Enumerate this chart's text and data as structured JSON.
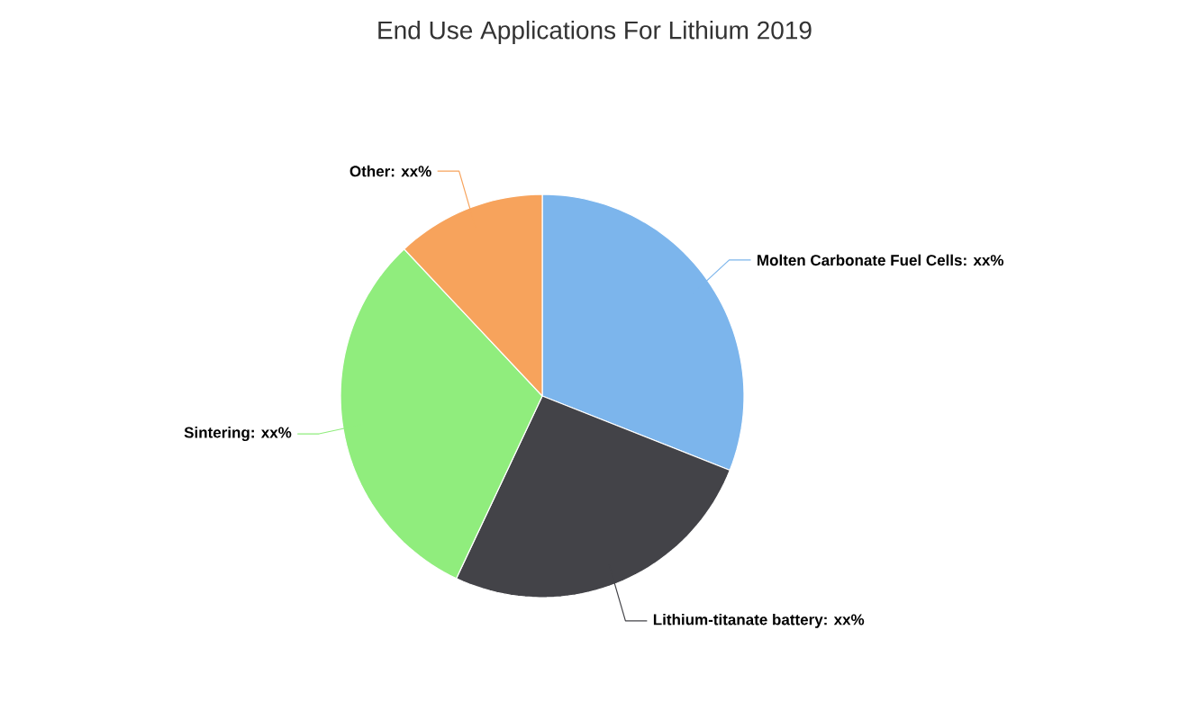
{
  "chart_data": {
    "type": "pie",
    "title": "End Use Applications For Lithium 2019",
    "categories": [
      "Molten Carbonate Fuel Cells: xx%",
      "Lithium-titanate battery: xx%",
      "Sintering: xx%",
      "Other: xx%"
    ],
    "values": [
      31,
      26,
      31,
      12
    ],
    "colors": [
      "#7cb5ec",
      "#434348",
      "#90ed7d",
      "#f7a35c"
    ]
  }
}
